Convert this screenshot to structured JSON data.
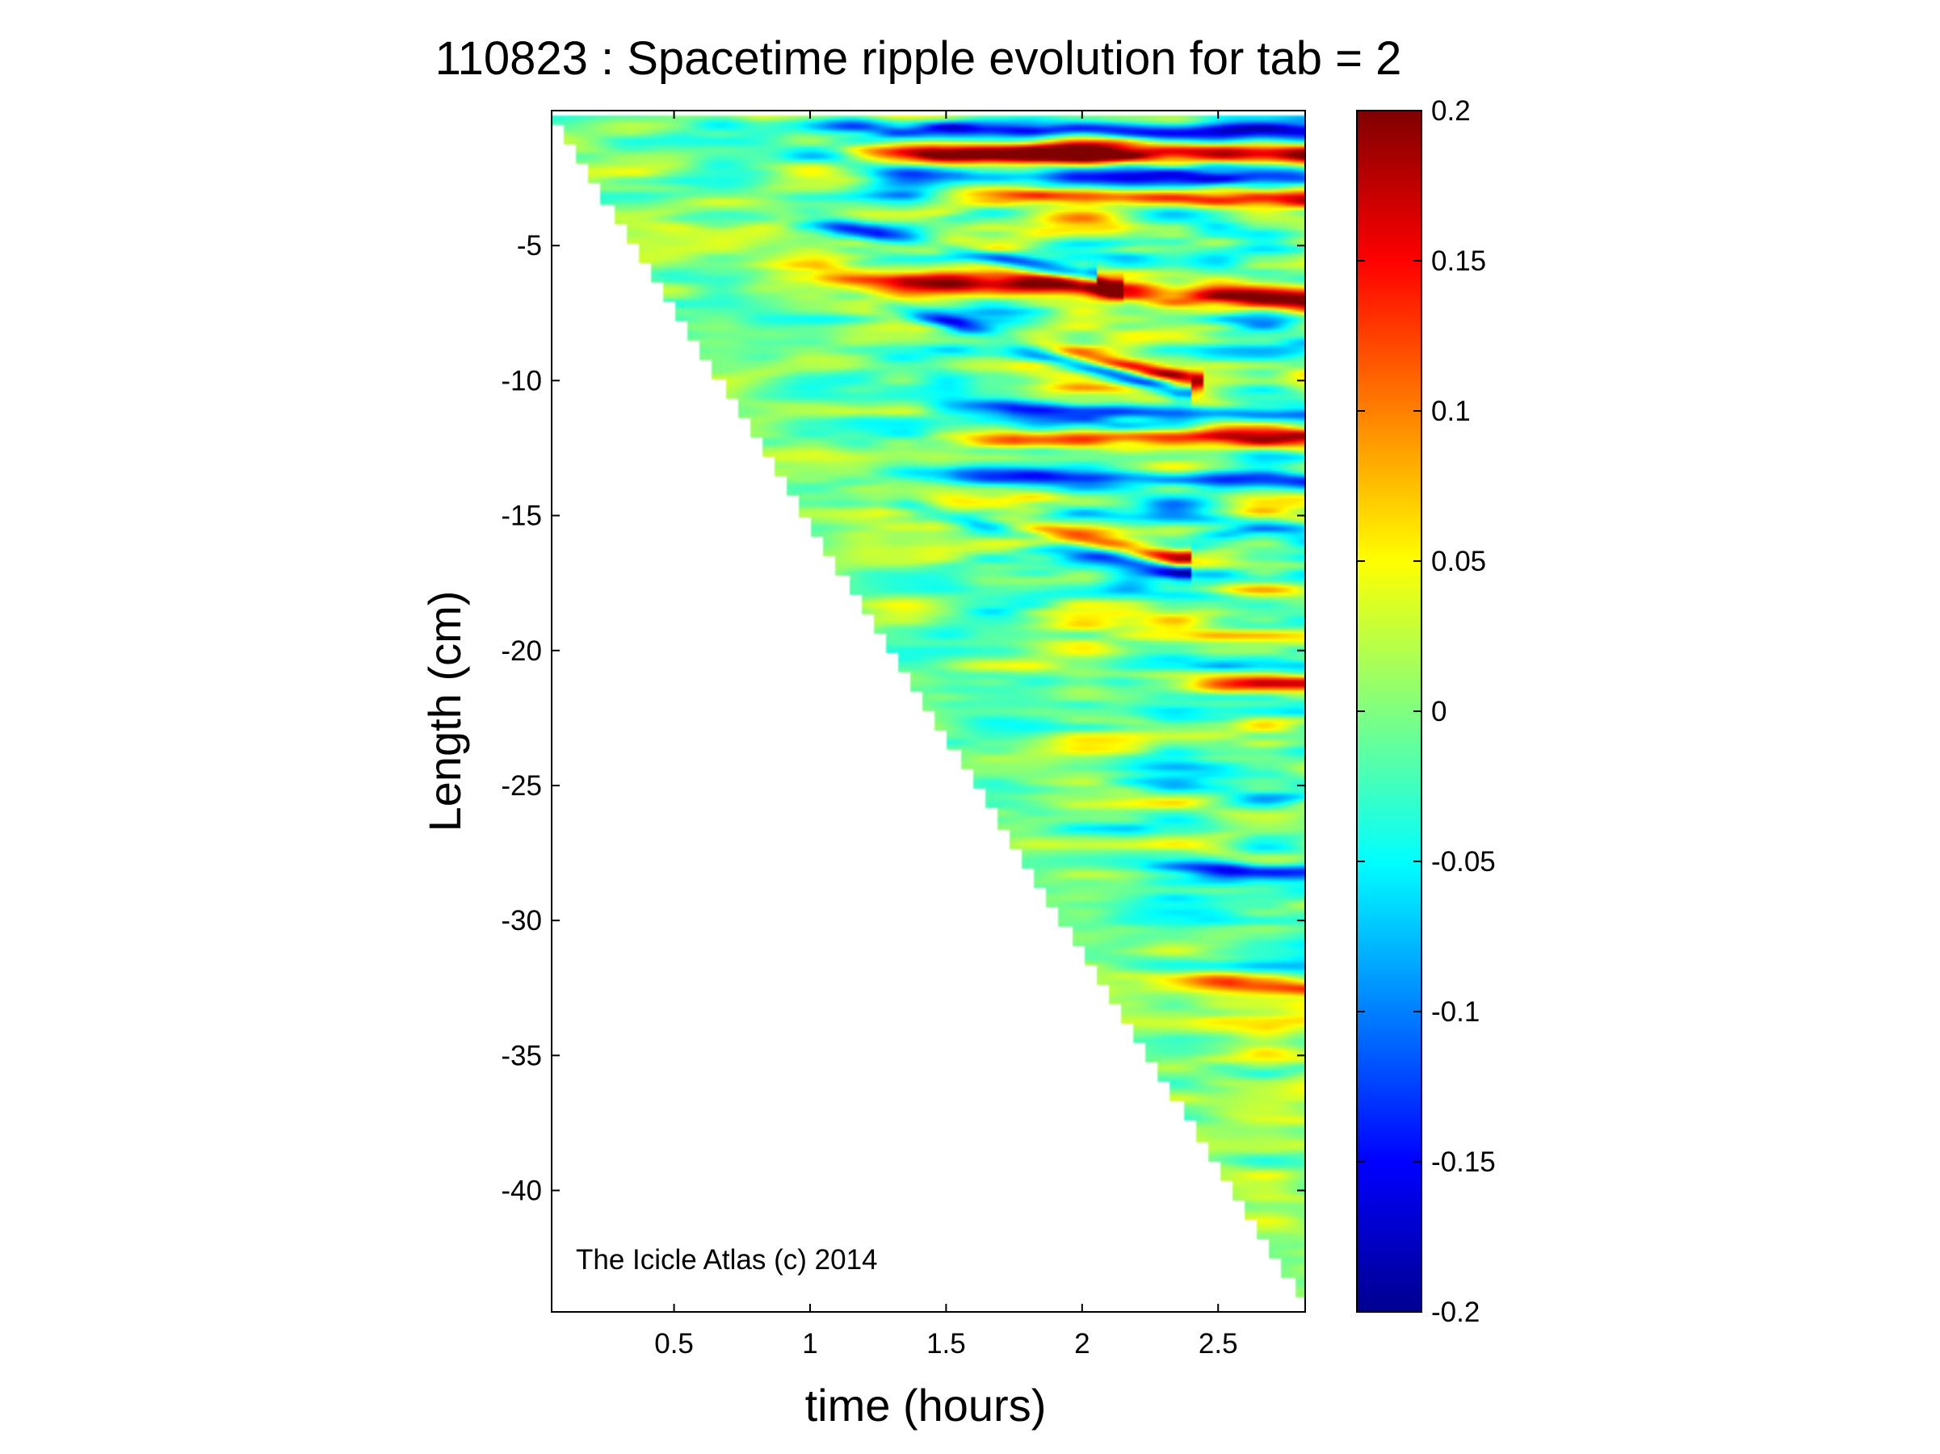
{
  "chart_data": {
    "type": "heatmap",
    "title": "110823 : Spacetime ripple evolution for tab = 2",
    "xlabel": "time (hours)",
    "ylabel": "Length (cm)",
    "xlim": [
      0.05,
      2.82
    ],
    "ylim": [
      -44.5,
      0
    ],
    "x_ticks": [
      0.5,
      1,
      1.5,
      2,
      2.5
    ],
    "x_tick_labels": [
      "0.5",
      "1",
      "1.5",
      "2",
      "2.5"
    ],
    "y_ticks": [
      -5,
      -10,
      -15,
      -20,
      -25,
      -30,
      -35,
      -40
    ],
    "y_tick_labels": [
      "-5",
      "-10",
      "-15",
      "-20",
      "-25",
      "-30",
      "-35",
      "-40"
    ],
    "colorbar": {
      "colormap": "jet",
      "range": [
        -0.2,
        0.2
      ],
      "ticks": [
        0.2,
        0.15,
        0.1,
        0.05,
        0,
        -0.05,
        -0.1,
        -0.15,
        -0.2
      ],
      "tick_labels": [
        "0.2",
        "0.15",
        "0.1",
        "0.05",
        "0",
        "-0.05",
        "-0.1",
        "-0.15",
        "-0.2"
      ]
    },
    "growth_front": {
      "t_start": 0.05,
      "len_start": -0.2,
      "t_end": 2.78,
      "len_end": -43.6
    },
    "dominant_ripples": [
      {
        "t0": 1.05,
        "len0": -0.6,
        "t1": 2.82,
        "len1": -0.8,
        "amp": -0.14,
        "width": 0.3
      },
      {
        "t0": 1.2,
        "len0": -1.5,
        "t1": 2.82,
        "len1": -1.6,
        "amp": 0.19,
        "width": 0.4
      },
      {
        "t0": 1.3,
        "len0": -2.4,
        "t1": 2.82,
        "len1": -2.6,
        "amp": -0.12,
        "width": 0.35
      },
      {
        "t0": 1.6,
        "len0": -3.1,
        "t1": 2.82,
        "len1": -3.3,
        "amp": 0.13,
        "width": 0.3
      },
      {
        "t0": 1.0,
        "len0": -4.1,
        "t1": 2.0,
        "len1": -6.2,
        "amp": -0.19,
        "width": 0.35
      },
      {
        "t0": 1.2,
        "len0": -4.6,
        "t1": 2.1,
        "len1": -6.6,
        "amp": 0.16,
        "width": 0.35
      },
      {
        "t0": 1.1,
        "len0": -6.1,
        "t1": 2.82,
        "len1": -7.0,
        "amp": 0.2,
        "width": 0.4
      },
      {
        "t0": 1.3,
        "len0": -7.3,
        "t1": 2.35,
        "len1": -10.4,
        "amp": -0.18,
        "width": 0.35
      },
      {
        "t0": 1.45,
        "len0": -8.0,
        "t1": 2.4,
        "len1": -10.0,
        "amp": 0.16,
        "width": 0.3
      },
      {
        "t0": 1.5,
        "len0": -11.0,
        "t1": 2.82,
        "len1": -11.3,
        "amp": -0.13,
        "width": 0.3
      },
      {
        "t0": 1.5,
        "len0": -12.2,
        "t1": 2.82,
        "len1": -12.1,
        "amp": 0.14,
        "width": 0.35
      },
      {
        "t0": 1.3,
        "len0": -13.4,
        "t1": 2.82,
        "len1": -13.7,
        "amp": -0.11,
        "width": 0.3
      },
      {
        "t0": 1.35,
        "len0": -14.7,
        "t1": 2.35,
        "len1": -17.0,
        "amp": -0.17,
        "width": 0.35
      },
      {
        "t0": 1.5,
        "len0": -15.2,
        "t1": 2.35,
        "len1": -16.6,
        "amp": 0.19,
        "width": 0.35
      },
      {
        "t0": 2.4,
        "len0": -21.3,
        "t1": 2.82,
        "len1": -21.3,
        "amp": 0.13,
        "width": 0.3
      },
      {
        "t0": 2.3,
        "len0": -28.0,
        "t1": 2.82,
        "len1": -28.2,
        "amp": -0.12,
        "width": 0.3
      },
      {
        "t0": 2.3,
        "len0": -32.2,
        "t1": 2.82,
        "len1": -32.4,
        "amp": 0.11,
        "width": 0.3
      }
    ]
  },
  "annotation": "The Icicle Atlas (c) 2014"
}
